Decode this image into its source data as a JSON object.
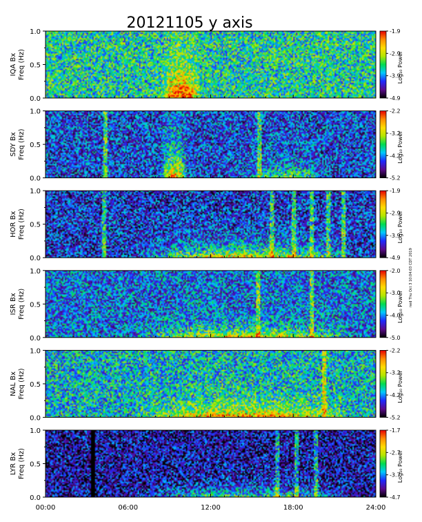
{
  "title": "20121105 y axis",
  "side_note": "ned Thu Oct 3 10:04:03 CDT 2019",
  "chart_data": {
    "type": "heatmap",
    "title": "20121105 y axis",
    "x_axis": {
      "range_hours": [
        0,
        24
      ],
      "ticks": [
        "00:00",
        "06:00",
        "12:00",
        "18:00",
        "24:00"
      ]
    },
    "y_ticks": [
      "0.0",
      "0.5",
      "1.0"
    ],
    "y_range": [
      0,
      1
    ],
    "colorbar_label": "Log₁₀ Power",
    "colormap": [
      "#000000",
      "#5a0a8c",
      "#1e28ff",
      "#00c8ff",
      "#00dc50",
      "#b4e600",
      "#ffdc00",
      "#ff8c00",
      "#e60000"
    ],
    "panels": [
      {
        "station": "IQA",
        "ylabel": [
          "IQA Bx",
          "Freq (Hz)"
        ],
        "cbar_ticks": [
          "-1.9",
          "-2.9",
          "-3.9",
          "-4.9"
        ],
        "clim": [
          -4.9,
          -1.9
        ],
        "base_level": 0.45,
        "seed": 11,
        "events": [
          {
            "center_h": 9.8,
            "width_h": 3.0,
            "strength": 0.55,
            "max_freq": 0.35
          }
        ]
      },
      {
        "station": "SDY",
        "ylabel": [
          "SDY Bx",
          "Freq (Hz)"
        ],
        "cbar_ticks": [
          "-2.2",
          "-3.2",
          "-4.2",
          "-5.2"
        ],
        "clim": [
          -5.2,
          -2.2
        ],
        "base_level": 0.25,
        "seed": 23,
        "events": [
          {
            "center_h": 9.3,
            "width_h": 2.0,
            "strength": 0.55,
            "max_freq": 0.4
          },
          {
            "center_h": 17.5,
            "width_h": 6.0,
            "strength": 0.3,
            "max_freq": 0.15
          }
        ],
        "lines_h": [
          4.3,
          15.5
        ]
      },
      {
        "station": "HOR",
        "ylabel": [
          "HOR Bx",
          "Freq (Hz)"
        ],
        "cbar_ticks": [
          "-1.9",
          "-2.9",
          "-3.9",
          "-4.9"
        ],
        "clim": [
          -4.9,
          -1.9
        ],
        "base_level": 0.22,
        "seed": 37,
        "events": [
          {
            "center_h": 14.5,
            "width_h": 16.0,
            "strength": 0.5,
            "max_freq": 0.15
          }
        ],
        "lines_h": [
          4.2,
          16.4,
          18.0,
          19.3,
          20.5,
          21.6
        ]
      },
      {
        "station": "ISR",
        "ylabel": [
          "ISR Bx",
          "Freq (Hz)"
        ],
        "cbar_ticks": [
          "-2.0",
          "-3.0",
          "-4.0",
          "-5.0"
        ],
        "clim": [
          -5.0,
          -2.0
        ],
        "base_level": 0.3,
        "seed": 51,
        "events": [
          {
            "center_h": 14.5,
            "width_h": 16.0,
            "strength": 0.45,
            "max_freq": 0.12
          }
        ],
        "lines_h": [
          15.4,
          19.3
        ]
      },
      {
        "station": "NAL",
        "ylabel": [
          "NAL Bx",
          "Freq (Hz)"
        ],
        "cbar_ticks": [
          "-2.2",
          "-3.2",
          "-4.2",
          "-5.2"
        ],
        "clim": [
          -5.2,
          -2.2
        ],
        "base_level": 0.4,
        "seed": 67,
        "events": [
          {
            "center_h": 14.5,
            "width_h": 16.0,
            "strength": 0.45,
            "max_freq": 0.15
          }
        ],
        "lines_h": [
          20.2
        ]
      },
      {
        "station": "LYR",
        "ylabel": [
          "LYR Bx",
          "Freq (Hz)"
        ],
        "cbar_ticks": [
          "-1.7",
          "-2.7",
          "-3.7",
          "-4.7"
        ],
        "clim": [
          -4.7,
          -1.7
        ],
        "base_level": 0.15,
        "seed": 83,
        "events": [
          {
            "center_h": 14.5,
            "width_h": 16.0,
            "strength": 0.35,
            "max_freq": 0.12
          }
        ],
        "lines_h": [
          16.8,
          18.2,
          19.6
        ],
        "gap_h": [
          3.25,
          3.5
        ]
      }
    ]
  }
}
